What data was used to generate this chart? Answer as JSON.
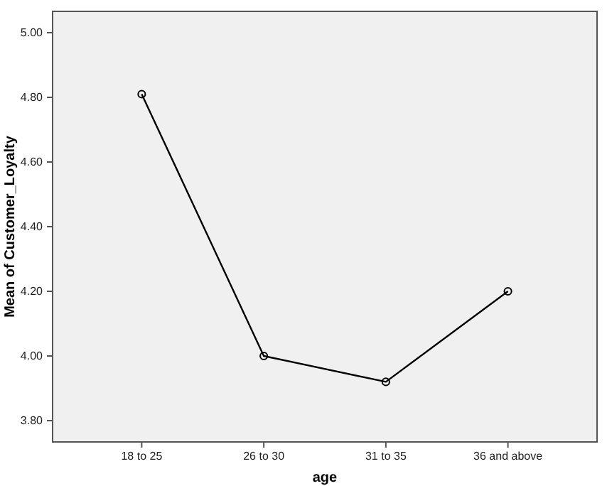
{
  "chart_data": {
    "type": "line",
    "xlabel": "age",
    "ylabel": "Mean of Customer_Loyalty",
    "categories": [
      "18 to 25",
      "26 to 30",
      "31 to 35",
      "36 and above"
    ],
    "series": [
      {
        "color": "#000000",
        "values": [
          4.81,
          4.0,
          3.92,
          4.2
        ]
      }
    ],
    "ylim": [
      3.734,
      5.066
    ],
    "yticks": [
      {
        "value": 3.8,
        "label": "3.80"
      },
      {
        "value": 4.0,
        "label": "4.00"
      },
      {
        "value": 4.2,
        "label": "4.20"
      },
      {
        "value": 4.4,
        "label": "4.40"
      },
      {
        "value": 4.6,
        "label": "4.60"
      },
      {
        "value": 4.8,
        "label": "4.80"
      },
      {
        "value": 5.0,
        "label": "5.00"
      }
    ],
    "marker": "circle",
    "grid": false
  }
}
